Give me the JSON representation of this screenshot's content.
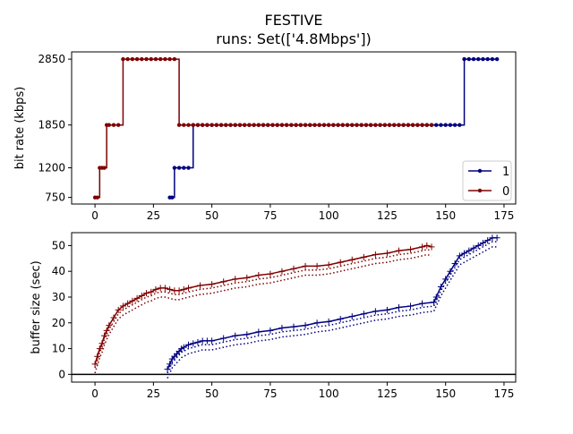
{
  "title": "FESTIVE",
  "subtitle": "runs: Set(['4.8Mbps'])",
  "colors": {
    "series_1": "#00007f",
    "series_0": "#7f0000"
  },
  "chart_data": [
    {
      "type": "line",
      "step": true,
      "ylabel": "bit rate (kbps)",
      "xlim": [
        -10,
        180
      ],
      "ylim": [
        650,
        2960
      ],
      "xticks": [
        0,
        25,
        50,
        75,
        100,
        125,
        150,
        175
      ],
      "yticks": [
        750,
        1200,
        1850,
        2850
      ],
      "legend": "lower-right",
      "series": [
        {
          "name": "1",
          "color": "#00007f",
          "x": [
            32,
            33,
            34,
            36,
            38,
            40,
            42,
            44,
            46,
            48,
            50,
            52,
            54,
            56,
            58,
            60,
            62,
            64,
            66,
            68,
            70,
            72,
            74,
            76,
            78,
            80,
            82,
            84,
            86,
            88,
            90,
            92,
            94,
            96,
            98,
            100,
            102,
            104,
            106,
            108,
            110,
            112,
            114,
            116,
            118,
            120,
            122,
            124,
            126,
            128,
            130,
            132,
            134,
            136,
            138,
            140,
            142,
            144,
            146,
            148,
            150,
            152,
            154,
            156,
            158,
            160,
            162,
            164,
            166,
            168,
            170,
            172
          ],
          "values": [
            750,
            750,
            1200,
            1200,
            1200,
            1200,
            1850,
            1850,
            1850,
            1850,
            1850,
            1850,
            1850,
            1850,
            1850,
            1850,
            1850,
            1850,
            1850,
            1850,
            1850,
            1850,
            1850,
            1850,
            1850,
            1850,
            1850,
            1850,
            1850,
            1850,
            1850,
            1850,
            1850,
            1850,
            1850,
            1850,
            1850,
            1850,
            1850,
            1850,
            1850,
            1850,
            1850,
            1850,
            1850,
            1850,
            1850,
            1850,
            1850,
            1850,
            1850,
            1850,
            1850,
            1850,
            1850,
            1850,
            1850,
            1850,
            1850,
            1850,
            1850,
            1850,
            1850,
            1850,
            2850,
            2850,
            2850,
            2850,
            2850,
            2850,
            2850,
            2850
          ]
        },
        {
          "name": "0",
          "color": "#7f0000",
          "x": [
            0,
            1,
            2,
            3,
            4,
            5,
            6,
            8,
            10,
            12,
            14,
            16,
            18,
            20,
            22,
            24,
            26,
            28,
            30,
            32,
            34,
            36,
            38,
            40,
            42,
            44,
            46,
            48,
            50,
            52,
            54,
            56,
            58,
            60,
            62,
            64,
            66,
            68,
            70,
            72,
            74,
            76,
            78,
            80,
            82,
            84,
            86,
            88,
            90,
            92,
            94,
            96,
            98,
            100,
            102,
            104,
            106,
            108,
            110,
            112,
            114,
            116,
            118,
            120,
            122,
            124,
            126,
            128,
            130,
            132,
            134,
            136,
            138,
            140,
            142,
            144
          ],
          "values": [
            750,
            750,
            1200,
            1200,
            1200,
            1850,
            1850,
            1850,
            1850,
            2850,
            2850,
            2850,
            2850,
            2850,
            2850,
            2850,
            2850,
            2850,
            2850,
            2850,
            2850,
            1850,
            1850,
            1850,
            1850,
            1850,
            1850,
            1850,
            1850,
            1850,
            1850,
            1850,
            1850,
            1850,
            1850,
            1850,
            1850,
            1850,
            1850,
            1850,
            1850,
            1850,
            1850,
            1850,
            1850,
            1850,
            1850,
            1850,
            1850,
            1850,
            1850,
            1850,
            1850,
            1850,
            1850,
            1850,
            1850,
            1850,
            1850,
            1850,
            1850,
            1850,
            1850,
            1850,
            1850,
            1850,
            1850,
            1850,
            1850,
            1850,
            1850,
            1850,
            1850,
            1850,
            1850,
            1850
          ]
        }
      ]
    },
    {
      "type": "line",
      "ylabel": "buffer size (sec)",
      "xlim": [
        -10,
        180
      ],
      "ylim": [
        -3,
        55
      ],
      "xticks": [
        0,
        25,
        50,
        75,
        100,
        125,
        150,
        175
      ],
      "yticks": [
        0,
        10,
        20,
        30,
        40,
        50
      ],
      "reference_line_y": 0,
      "series": [
        {
          "name": "1",
          "color": "#00007f",
          "x": [
            31,
            32,
            33,
            34,
            35,
            36,
            37,
            38,
            40,
            42,
            44,
            46,
            48,
            50,
            55,
            60,
            65,
            70,
            75,
            80,
            85,
            90,
            95,
            100,
            105,
            110,
            115,
            120,
            125,
            130,
            135,
            140,
            145,
            146,
            148,
            150,
            152,
            154,
            156,
            158,
            160,
            162,
            164,
            166,
            168,
            170,
            172
          ],
          "values": [
            2,
            4,
            6,
            7,
            8,
            9,
            10,
            10.5,
            11.5,
            12,
            12.5,
            13,
            13,
            13,
            14,
            15,
            15.5,
            16.5,
            17,
            18,
            18.5,
            19,
            20,
            20.5,
            21.5,
            22.5,
            23.5,
            24.5,
            25,
            26,
            26.5,
            27.5,
            28,
            30,
            34,
            37,
            40,
            43,
            46,
            47,
            48,
            49,
            50,
            51,
            52,
            53,
            53
          ]
        },
        {
          "name": "0",
          "color": "#7f0000",
          "x": [
            0,
            1,
            2,
            3,
            4,
            5,
            6,
            8,
            10,
            12,
            14,
            16,
            18,
            20,
            22,
            24,
            26,
            28,
            30,
            32,
            34,
            36,
            38,
            40,
            45,
            50,
            55,
            60,
            65,
            70,
            75,
            80,
            85,
            90,
            95,
            100,
            105,
            110,
            115,
            120,
            125,
            130,
            135,
            140,
            142,
            144
          ],
          "values": [
            4,
            7,
            10,
            12,
            15,
            17,
            19,
            22,
            25,
            26.5,
            27.5,
            28.5,
            29.5,
            30.5,
            31.5,
            32,
            33,
            33.5,
            33.5,
            33,
            32.5,
            32.5,
            33,
            33.5,
            34.5,
            35,
            36,
            37,
            37.5,
            38.5,
            39,
            40,
            41,
            42,
            42,
            42.5,
            43.5,
            44.5,
            45.5,
            46.5,
            47,
            48,
            48.5,
            49.5,
            50,
            49.5
          ]
        }
      ]
    }
  ]
}
